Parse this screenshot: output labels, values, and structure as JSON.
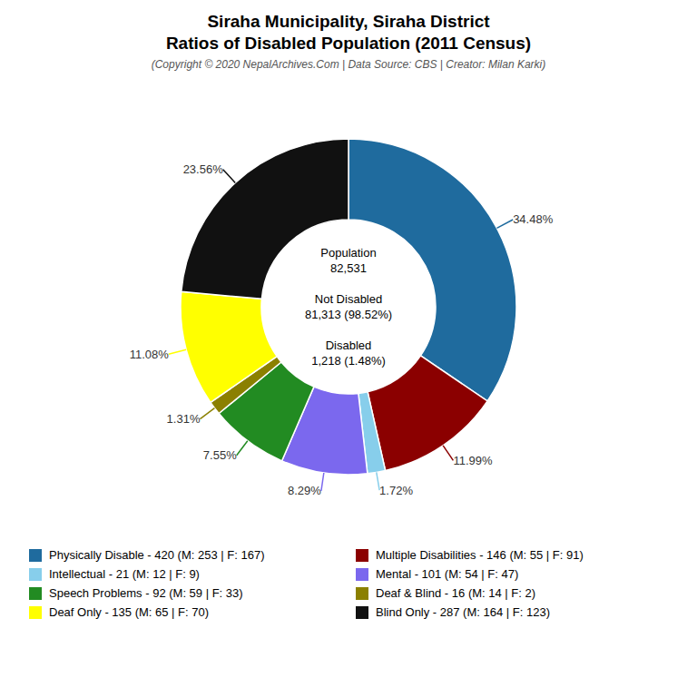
{
  "chart_data": {
    "type": "pie",
    "title": "Siraha Municipality, Siraha District\nRatios of Disabled Population (2011 Census)",
    "subtitle": "(Copyright © 2020 NepalArchives.Com | Data Source: CBS | Creator: Milan Karki)",
    "categories": [
      "Physically Disable - 420 (M: 253 | F: 167)",
      "Multiple Disabilities - 146 (M: 55 | F: 91)",
      "Intellectual - 21 (M: 12 | F: 9)",
      "Mental - 101 (M: 54 | F: 47)",
      "Speech Problems - 92 (M: 59 | F: 33)",
      "Deaf & Blind - 16 (M: 14 | F: 2)",
      "Deaf Only - 135 (M: 65 | F: 70)",
      "Blind Only - 287 (M: 164 | F: 123)"
    ],
    "values": [
      34.48,
      11.99,
      1.72,
      8.29,
      7.55,
      1.31,
      11.08,
      23.56
    ],
    "value_labels": [
      "34.48%",
      "11.99%",
      "1.72%",
      "8.29%",
      "7.55%",
      "1.31%",
      "11.08%",
      "23.56%"
    ],
    "colors": [
      "#1f6b9e",
      "#8B0000",
      "#87CEEB",
      "#7B68EE",
      "#228B22",
      "#8B8000",
      "#ffff00",
      "#111111"
    ],
    "data_labels": true,
    "legend": "bottom",
    "annotations": [
      "Population\n82,531\n\nNot Disabled\n81,313 (98.52%)\n\nDisabled\n1,218 (1.48%)"
    ]
  }
}
